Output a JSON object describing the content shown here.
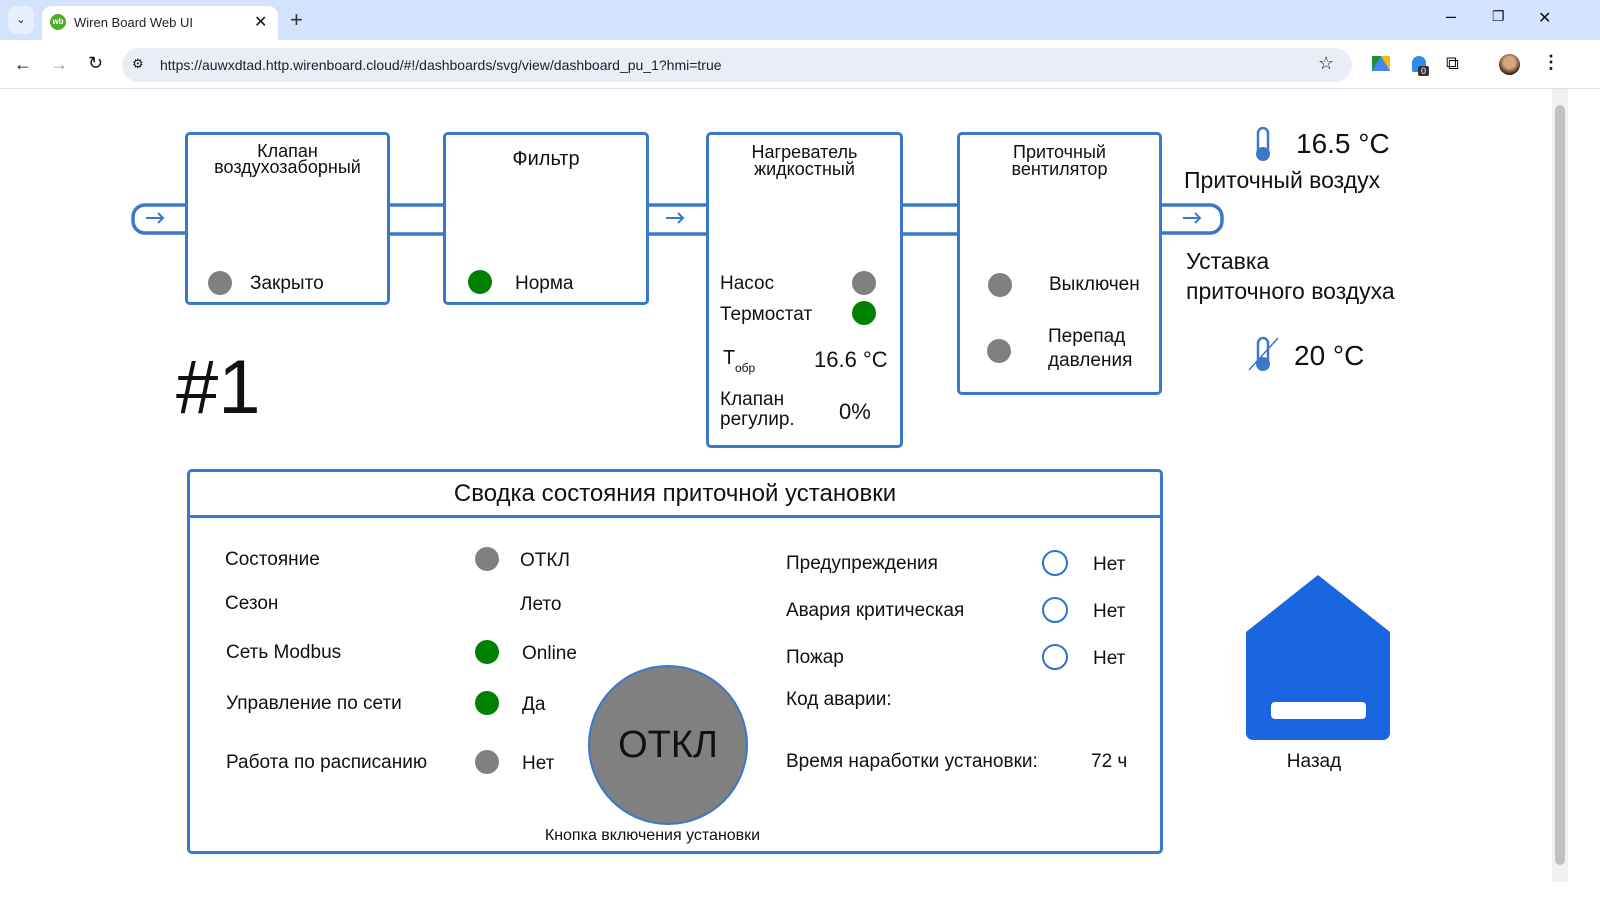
{
  "browser": {
    "tab_title": "Wiren Board Web UI",
    "url": "https://auwxdtad.http.wirenboard.cloud/#!/dashboards/svg/view/dashboard_pu_1?hmi=true",
    "extension_badge": "0"
  },
  "colors": {
    "accent": "#3a78c9",
    "ok": "#008000",
    "off": "#808080",
    "home": "#1a66e0",
    "heater": "#c98378"
  },
  "unit_number": "#1",
  "damper": {
    "title_1": "Клапан",
    "title_2": "воздухозаборный",
    "status": "Закрыто",
    "indicator": "gray"
  },
  "filter": {
    "title": "Фильтр",
    "status": "Норма",
    "indicator": "green"
  },
  "heater": {
    "title_1": "Нагреватель",
    "title_2": "жидкостный",
    "pump_label": "Насос",
    "pump_indicator": "gray",
    "thermostat_label": "Термостат",
    "thermostat_indicator": "green",
    "t_label": "T",
    "t_sub": "обр",
    "t_value": "16.6 °C",
    "valve_label_1": "Клапан",
    "valve_label_2": "регулир.",
    "valve_value": "0%"
  },
  "fan": {
    "title_1": "Приточный",
    "title_2": "вентилятор",
    "status": "Выключен",
    "pressure_label_1": "Перепад",
    "pressure_label_2": "давления"
  },
  "supply": {
    "temp": "16.5 °C",
    "label": "Приточный воздух",
    "setpoint_label_1": "Уставка",
    "setpoint_label_2": "приточного воздуха",
    "setpoint": "20 °C"
  },
  "summary": {
    "title": "Сводка состояния приточной установки",
    "left": [
      {
        "label": "Состояние",
        "value": "ОТКЛ",
        "indicator": "gray"
      },
      {
        "label": "Сезон",
        "value": "Лето",
        "indicator": "sun-icon"
      },
      {
        "label": "Сеть Modbus",
        "value": "Online",
        "indicator": "green"
      },
      {
        "label": "Управление по сети",
        "value": "Да",
        "indicator": "green"
      },
      {
        "label": "Работа по расписанию",
        "value": "Нет",
        "indicator": "gray"
      }
    ],
    "right": [
      {
        "label": "Предупреждения",
        "value": "Нет"
      },
      {
        "label": "Авария критическая",
        "value": "Нет"
      },
      {
        "label": "Пожар",
        "value": "Нет"
      }
    ],
    "alarm_code_label": "Код аварии:",
    "runtime_label": "Время наработки установки:",
    "runtime_value": "72 ч",
    "power_button": "ОТКЛ",
    "power_caption": "Кнопка включения установки"
  },
  "back_label": "Назад"
}
